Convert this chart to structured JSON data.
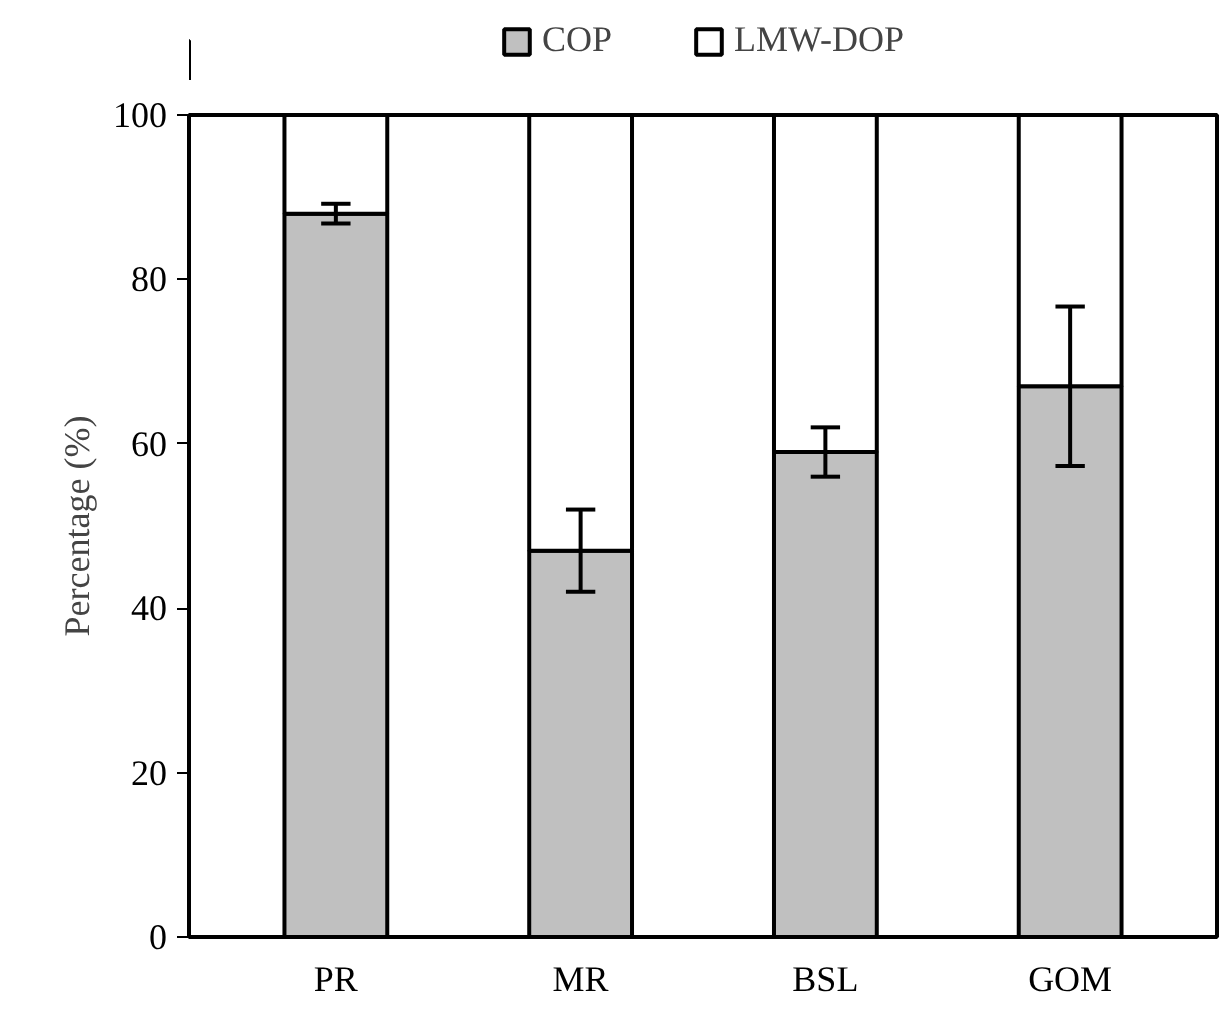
{
  "chart_data": {
    "type": "bar",
    "stacked": true,
    "ylabel": "Percentage (%)",
    "categories": [
      "PR",
      "MR",
      "BSL",
      "GOM"
    ],
    "series": [
      {
        "name": "COP",
        "color": "#c0c0c0",
        "values": [
          88,
          47,
          59,
          67
        ],
        "errors": [
          1.2,
          5,
          3,
          9.7
        ]
      },
      {
        "name": "LMW-DOP",
        "color": "#ffffff",
        "values": [
          12,
          53,
          41,
          33
        ]
      }
    ],
    "ylim": [
      0,
      100
    ],
    "yticks": [
      0,
      20,
      40,
      60,
      80,
      100
    ],
    "grid": false,
    "legend": "top"
  }
}
